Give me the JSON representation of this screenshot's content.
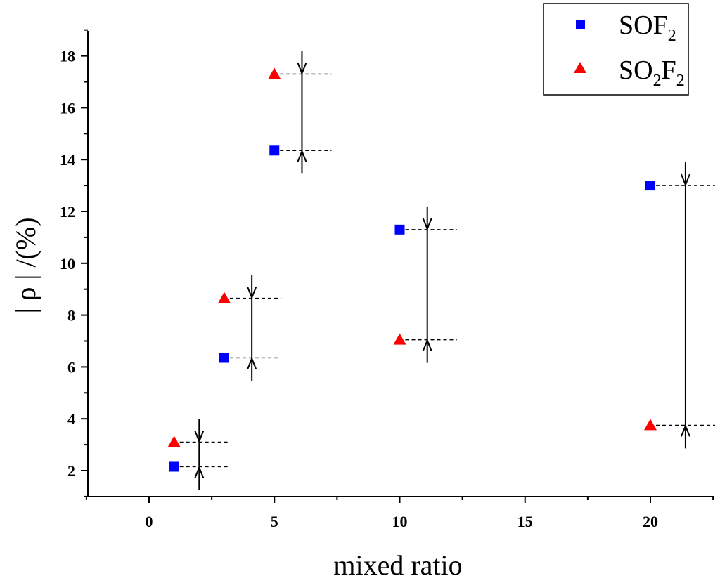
{
  "chart_data": {
    "type": "scatter",
    "title": "",
    "xlabel": "mixed ratio",
    "ylabel": "| ρ | /(%)",
    "xlim": [
      -2.5,
      22.5
    ],
    "ylim": [
      1,
      19
    ],
    "xticks": [
      0,
      5,
      10,
      15,
      20
    ],
    "yticks": [
      2,
      4,
      6,
      8,
      10,
      12,
      14,
      16,
      18
    ],
    "legend_position": "top-right",
    "series": [
      {
        "name": "SOF2",
        "legend_main": "SOF",
        "legend_sub": "2",
        "legend_tail": "",
        "marker": "square",
        "color": "#0000ff",
        "x": [
          1,
          3,
          5,
          10,
          20
        ],
        "y": [
          2.15,
          6.35,
          14.35,
          11.3,
          13.0
        ]
      },
      {
        "name": "SO2F2",
        "legend_main": "SO",
        "legend_sub": "2",
        "legend_tail": "F",
        "legend_sub2": "2",
        "marker": "triangle",
        "color": "#ff0000",
        "x": [
          1,
          3,
          5,
          10,
          20
        ],
        "y": [
          3.1,
          8.65,
          17.3,
          7.05,
          3.75
        ]
      }
    ],
    "difference_markers": [
      {
        "x": 2,
        "low": 2.15,
        "high": 3.1
      },
      {
        "x": 4.1,
        "low": 6.35,
        "high": 8.65
      },
      {
        "x": 6.1,
        "low": 14.35,
        "high": 17.3
      },
      {
        "x": 11.1,
        "low": 7.05,
        "high": 11.3
      },
      {
        "x": 21.4,
        "low": 3.75,
        "high": 13.0
      }
    ]
  }
}
